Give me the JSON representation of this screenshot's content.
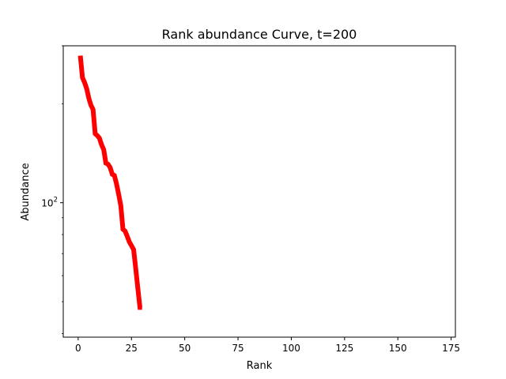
{
  "chart_data": {
    "type": "line",
    "title": "Rank abundance Curve, t=200",
    "xlabel": "Rank",
    "ylabel": "Abundance",
    "xlim": [
      -7,
      177
    ],
    "ylim": [
      39,
      300
    ],
    "yscale": "log",
    "grid": false,
    "x_ticks": [
      0,
      25,
      50,
      75,
      100,
      125,
      150,
      175
    ],
    "y_ticks": [
      {
        "base": "10",
        "exp": "2",
        "value": 100
      }
    ],
    "series": [
      {
        "color": "#ff0000",
        "x": [
          1,
          2,
          3,
          4,
          5,
          6,
          7,
          8,
          9,
          10,
          11,
          12,
          13,
          14,
          15,
          16,
          17,
          18,
          19,
          20,
          21,
          22,
          23,
          24,
          25,
          26,
          27,
          28,
          29,
          30
        ],
        "y": [
          280,
          240,
          232,
          222,
          208,
          198,
          192,
          162,
          160,
          157,
          150,
          145,
          132,
          131,
          128,
          122,
          121,
          114,
          106,
          98,
          83,
          82,
          79,
          76,
          74,
          72,
          63,
          55,
          48,
          48
        ]
      }
    ]
  }
}
